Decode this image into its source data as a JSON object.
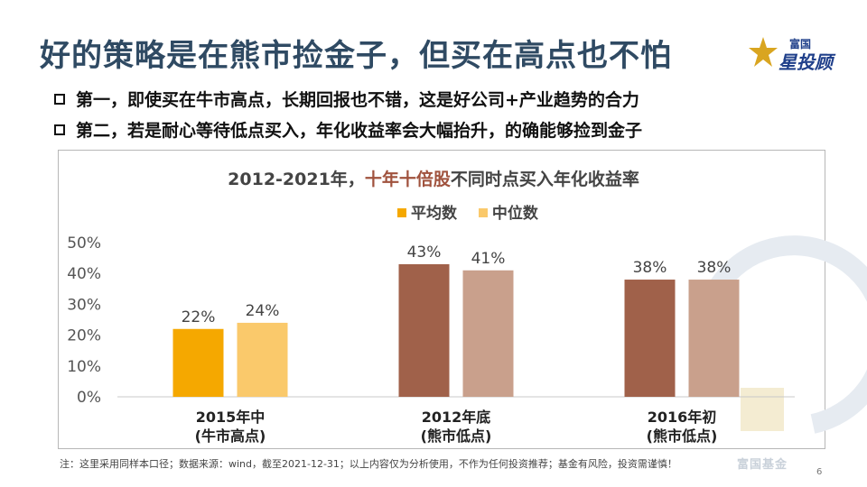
{
  "slide": {
    "title": "好的策略是在熊市捡金子，但买在高点也不怕",
    "logo_small": "富国",
    "logo_big": "星投顾",
    "bullets": [
      "第一，即使买在牛市高点，长期回报也不错，这是好公司+产业趋势的合力",
      "第二，若是耐心等待低点买入，年化收益率会大幅抬升，的确能够捡到金子"
    ],
    "watermark": "富国基金",
    "footnote": "注：这里采用同样本口径；数据来源：wind，截至2021-12-31；以上内容仅为分析使用，不作为任何投资推荐；基金有风险，投资需谨慎！",
    "page_number": "6"
  },
  "chart_data": {
    "type": "bar",
    "title_prefix": "2012-2021年，",
    "title_highlight": "十年十倍股",
    "title_suffix": "不同时点买入年化收益率",
    "categories": [
      [
        "2015年中",
        "(牛市高点)"
      ],
      [
        "2012年底",
        "(熊市低点)"
      ],
      [
        "2016年初",
        "(熊市低点)"
      ]
    ],
    "series": [
      {
        "name": "平均数",
        "values": [
          22,
          43,
          38
        ]
      },
      {
        "name": "中位数",
        "values": [
          24,
          41,
          38
        ]
      }
    ],
    "colors": [
      [
        "#f5a800",
        "#fac96b"
      ],
      [
        "#a0614a",
        "#c9a08c"
      ],
      [
        "#a0614a",
        "#c9a08c"
      ]
    ],
    "legend_colors": [
      "#f5a800",
      "#fac96b"
    ],
    "value_suffix": "%",
    "ylim": [
      0,
      50
    ],
    "yticks": [
      "0%",
      "10%",
      "20%",
      "30%",
      "40%",
      "50%"
    ]
  }
}
